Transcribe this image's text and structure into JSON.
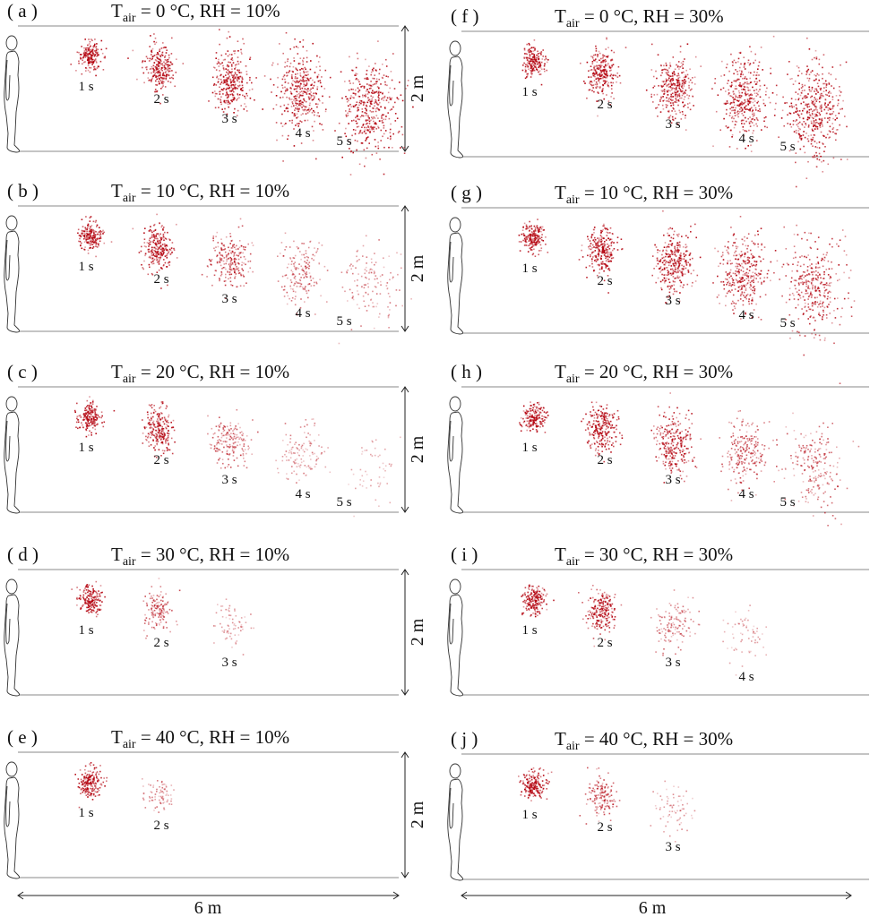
{
  "panels": [
    {
      "id": "a",
      "letter": "( a )",
      "t": "T",
      "sub": "air",
      "rest": " = 0 °C, RH = 10%",
      "clouds": [
        {
          "label": "1 s",
          "intensity": 1
        },
        {
          "label": "2 s",
          "intensity": 1
        },
        {
          "label": "3 s",
          "intensity": 1
        },
        {
          "label": "4 s",
          "intensity": 1
        },
        {
          "label": "5 s",
          "intensity": 1
        }
      ]
    },
    {
      "id": "b",
      "letter": "( b )",
      "t": "T",
      "sub": "air",
      "rest": " = 10 °C, RH = 10%",
      "clouds": [
        {
          "label": "1 s",
          "intensity": 1
        },
        {
          "label": "2 s",
          "intensity": 1
        },
        {
          "label": "3 s",
          "intensity": 0.7
        },
        {
          "label": "4 s",
          "intensity": 0.45
        },
        {
          "label": "5 s",
          "intensity": 0.3
        }
      ]
    },
    {
      "id": "c",
      "letter": "( c )",
      "t": "T",
      "sub": "air",
      "rest": " = 20 °C, RH = 10%",
      "clouds": [
        {
          "label": "1 s",
          "intensity": 1
        },
        {
          "label": "2 s",
          "intensity": 0.95
        },
        {
          "label": "3 s",
          "intensity": 0.55
        },
        {
          "label": "4 s",
          "intensity": 0.3
        },
        {
          "label": "5 s",
          "intensity": 0.1
        }
      ]
    },
    {
      "id": "d",
      "letter": "( d )",
      "t": "T",
      "sub": "air",
      "rest": " = 30 °C, RH = 10%",
      "clouds": [
        {
          "label": "1 s",
          "intensity": 1
        },
        {
          "label": "2 s",
          "intensity": 0.55
        },
        {
          "label": "3 s",
          "intensity": 0.2
        }
      ]
    },
    {
      "id": "e",
      "letter": "( e )",
      "t": "T",
      "sub": "air",
      "rest": " = 40 °C, RH = 10%",
      "clouds": [
        {
          "label": "1 s",
          "intensity": 1
        },
        {
          "label": "2 s",
          "intensity": 0.3
        }
      ]
    },
    {
      "id": "f",
      "letter": "( f )",
      "t": "T",
      "sub": "air",
      "rest": " = 0 °C, RH = 30%",
      "clouds": [
        {
          "label": "1 s",
          "intensity": 1
        },
        {
          "label": "2 s",
          "intensity": 1
        },
        {
          "label": "3 s",
          "intensity": 1
        },
        {
          "label": "4 s",
          "intensity": 1
        },
        {
          "label": "5 s",
          "intensity": 1
        }
      ]
    },
    {
      "id": "g",
      "letter": "( g )",
      "t": "T",
      "sub": "air",
      "rest": " = 10 °C, RH = 30%",
      "clouds": [
        {
          "label": "1 s",
          "intensity": 1
        },
        {
          "label": "2 s",
          "intensity": 1
        },
        {
          "label": "3 s",
          "intensity": 1
        },
        {
          "label": "4 s",
          "intensity": 0.9
        },
        {
          "label": "5 s",
          "intensity": 0.8
        }
      ]
    },
    {
      "id": "h",
      "letter": "( h )",
      "t": "T",
      "sub": "air",
      "rest": " = 20 °C, RH = 30%",
      "clouds": [
        {
          "label": "1 s",
          "intensity": 1
        },
        {
          "label": "2 s",
          "intensity": 1
        },
        {
          "label": "3 s",
          "intensity": 0.9
        },
        {
          "label": "4 s",
          "intensity": 0.6
        },
        {
          "label": "5 s",
          "intensity": 0.5
        }
      ]
    },
    {
      "id": "i",
      "letter": "( i )",
      "t": "T",
      "sub": "air",
      "rest": " = 30 °C, RH = 30%",
      "clouds": [
        {
          "label": "1 s",
          "intensity": 1
        },
        {
          "label": "2 s",
          "intensity": 0.9
        },
        {
          "label": "3 s",
          "intensity": 0.4
        },
        {
          "label": "4 s",
          "intensity": 0.15
        }
      ]
    },
    {
      "id": "j",
      "letter": "( j )",
      "t": "T",
      "sub": "air",
      "rest": " = 40 °C, RH = 30%",
      "clouds": [
        {
          "label": "1 s",
          "intensity": 1
        },
        {
          "label": "2 s",
          "intensity": 0.6
        },
        {
          "label": "3 s",
          "intensity": 0.2
        }
      ]
    }
  ],
  "height_label": "2 m",
  "width_label": "6 m",
  "colors": {
    "droplet": "#b3000c",
    "frame": "#888888"
  }
}
